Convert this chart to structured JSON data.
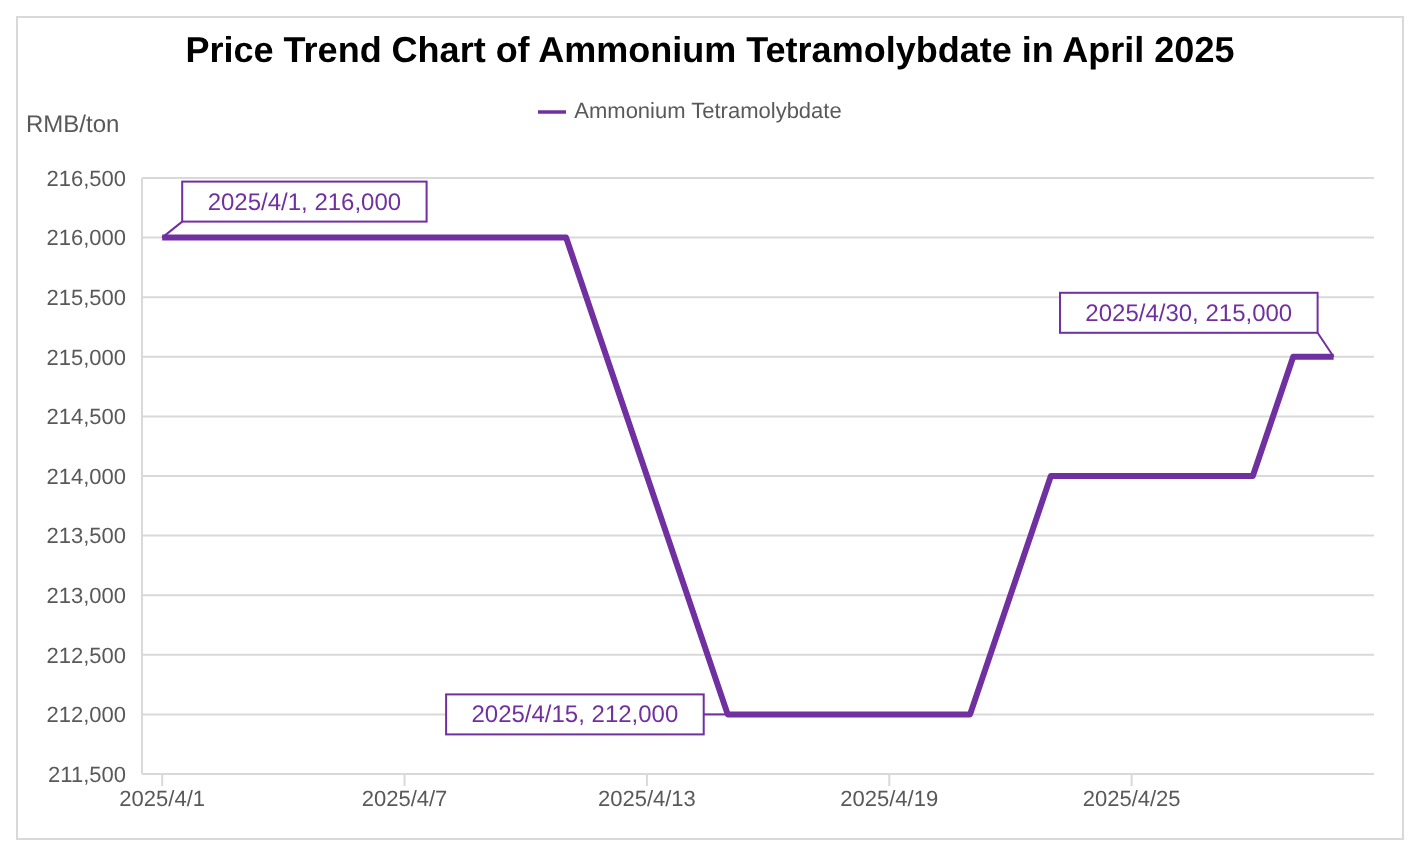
{
  "chart_data": {
    "type": "line",
    "title": "Price Trend Chart of Ammonium Tetramolybdate in April 2025",
    "ylabel": "RMB/ton",
    "x": [
      "2025-04-01",
      "2025-04-11",
      "2025-04-15",
      "2025-04-21",
      "2025-04-23",
      "2025-04-28",
      "2025-04-29",
      "2025-04-30"
    ],
    "series": [
      {
        "name": "Ammonium Tetramolybdate",
        "color": "#7030a0",
        "values": [
          216000,
          216000,
          212000,
          212000,
          214000,
          214000,
          215000,
          215000
        ]
      }
    ],
    "xlim": [
      "2025-03-31T12:00",
      "2025-05-01"
    ],
    "xticks": [
      {
        "value": "2025-04-01",
        "label": "2025/4/1"
      },
      {
        "value": "2025-04-07",
        "label": "2025/4/7"
      },
      {
        "value": "2025-04-13",
        "label": "2025/4/13"
      },
      {
        "value": "2025-04-19",
        "label": "2025/4/19"
      },
      {
        "value": "2025-04-25",
        "label": "2025/4/25"
      }
    ],
    "ylim": [
      211500,
      216500
    ],
    "yticks": [
      {
        "value": 211500,
        "label": "211,500"
      },
      {
        "value": 212000,
        "label": "212,000"
      },
      {
        "value": 212500,
        "label": "212,500"
      },
      {
        "value": 213000,
        "label": "213,000"
      },
      {
        "value": 213500,
        "label": "213,500"
      },
      {
        "value": 214000,
        "label": "214,000"
      },
      {
        "value": 214500,
        "label": "214,500"
      },
      {
        "value": 215000,
        "label": "215,000"
      },
      {
        "value": 215500,
        "label": "215,500"
      },
      {
        "value": 216000,
        "label": "216,000"
      },
      {
        "value": 216500,
        "label": "216,500"
      }
    ],
    "annotations": [
      {
        "text": "2025/4/1, 216,000",
        "x": "2025-04-01",
        "y": 216000
      },
      {
        "text": "2025/4/15, 212,000",
        "x": "2025-04-15",
        "y": 212000
      },
      {
        "text": "2025/4/30, 215,000",
        "x": "2025-04-30",
        "y": 215000
      }
    ],
    "grid": "y",
    "legend": "top",
    "marker": "none",
    "line_style": "solid"
  }
}
